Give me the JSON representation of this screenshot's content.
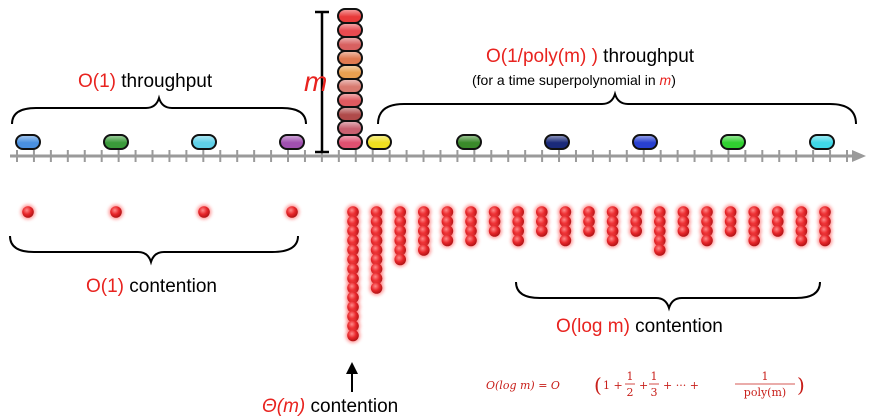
{
  "labels": {
    "o1_throughput": {
      "red": "O(1)",
      "black": " throughput"
    },
    "m_symbol": "m",
    "poly_throughput": {
      "red": "O(1/poly(m) )",
      "black": " throughput"
    },
    "poly_note": {
      "prefix": "(for a time superpolynomial in ",
      "m": "m",
      "suffix": ")"
    },
    "o1_contention": {
      "red": "O(1)",
      "black": " contention"
    },
    "theta_contention": {
      "red": "Θ(m)",
      "black": " contention"
    },
    "log_contention": {
      "red": "O(log m)",
      "black": " contention"
    },
    "formula": {
      "lhs": "O(log m) = O",
      "terms": [
        "1 +",
        "+",
        "+ ··· +"
      ],
      "fractions": [
        {
          "num": "1",
          "den": "2"
        },
        {
          "num": "1",
          "den": "3"
        },
        {
          "num": "1",
          "den": "poly(m)"
        }
      ]
    }
  },
  "timeline": {
    "tick_count": 50,
    "pre_capsules": [
      {
        "color": "#4a90e0",
        "name": "blue"
      },
      {
        "color": "#3a9a3a",
        "name": "green"
      },
      {
        "color": "#5fd0e8",
        "name": "cyan"
      },
      {
        "color": "#a050b0",
        "name": "purple"
      }
    ],
    "stack_capsules": [
      "#e83a3a",
      "#e84a50",
      "#d86060",
      "#e07a50",
      "#e8a050",
      "#d87a70",
      "#e05a60",
      "#b04a4a",
      "#c86070",
      "#e05070"
    ],
    "post_capsules": [
      {
        "color": "#f0e020",
        "name": "yellow"
      },
      {
        "color": "#3a8a2a",
        "name": "green"
      },
      {
        "color": "#1a2a7a",
        "name": "navy"
      },
      {
        "color": "#2840d0",
        "name": "blue"
      },
      {
        "color": "#30d030",
        "name": "green"
      },
      {
        "color": "#40d8e8",
        "name": "cyan"
      }
    ]
  },
  "contention": {
    "single_dots": 4,
    "column_heights": [
      14,
      9,
      6,
      5,
      4,
      4,
      3,
      4,
      3,
      4,
      3,
      4,
      3,
      5,
      3,
      4,
      3,
      4,
      3,
      4,
      4
    ]
  },
  "colors": {
    "accent": "#e8231f",
    "capsule_stack_red": "#e83a3a",
    "dot": "#e8262a"
  }
}
